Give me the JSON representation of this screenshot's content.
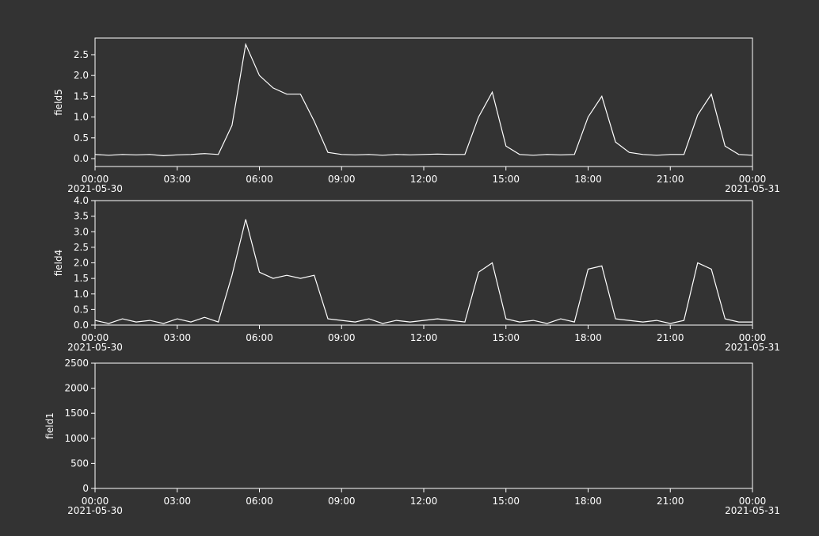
{
  "chart_data": [
    {
      "type": "line",
      "ylabel": "field5",
      "x": [
        "2021-05-30 00:00",
        "2021-05-30 00:30",
        "2021-05-30 01:00",
        "2021-05-30 01:30",
        "2021-05-30 02:00",
        "2021-05-30 02:30",
        "2021-05-30 03:00",
        "2021-05-30 03:30",
        "2021-05-30 04:00",
        "2021-05-30 04:30",
        "2021-05-30 05:00",
        "2021-05-30 05:30",
        "2021-05-30 06:00",
        "2021-05-30 06:30",
        "2021-05-30 07:00",
        "2021-05-30 07:30",
        "2021-05-30 08:00",
        "2021-05-30 08:30",
        "2021-05-30 09:00",
        "2021-05-30 09:30",
        "2021-05-30 10:00",
        "2021-05-30 10:30",
        "2021-05-30 11:00",
        "2021-05-30 11:30",
        "2021-05-30 12:00",
        "2021-05-30 12:30",
        "2021-05-30 13:00",
        "2021-05-30 13:30",
        "2021-05-30 14:00",
        "2021-05-30 14:30",
        "2021-05-30 15:00",
        "2021-05-30 15:30",
        "2021-05-30 16:00",
        "2021-05-30 16:30",
        "2021-05-30 17:00",
        "2021-05-30 17:30",
        "2021-05-30 18:00",
        "2021-05-30 18:30",
        "2021-05-30 19:00",
        "2021-05-30 19:30",
        "2021-05-30 20:00",
        "2021-05-30 20:30",
        "2021-05-30 21:00",
        "2021-05-30 21:30",
        "2021-05-30 22:00",
        "2021-05-30 22:30",
        "2021-05-30 23:00",
        "2021-05-30 23:30",
        "2021-05-31 00:00"
      ],
      "series": [
        {
          "name": "field5",
          "color": "#ffffff",
          "values": [
            0.1,
            0.08,
            0.1,
            0.09,
            0.1,
            0.07,
            0.09,
            0.1,
            0.12,
            0.1,
            0.8,
            2.75,
            2.0,
            1.7,
            1.55,
            1.55,
            0.9,
            0.15,
            0.1,
            0.09,
            0.1,
            0.08,
            0.1,
            0.09,
            0.1,
            0.11,
            0.1,
            0.1,
            1.0,
            1.6,
            0.3,
            0.1,
            0.08,
            0.1,
            0.09,
            0.1,
            1.0,
            1.5,
            0.4,
            0.15,
            0.1,
            0.08,
            0.1,
            0.1,
            1.05,
            1.55,
            0.3,
            0.1,
            0.08
          ]
        }
      ],
      "xlim": [
        "2021-05-30 00:00",
        "2021-05-31 00:00"
      ],
      "xticks": [
        {
          "value": "2021-05-30 00:00",
          "label": "00:00",
          "sublabel": "2021-05-30"
        },
        {
          "value": "2021-05-30 03:00",
          "label": "03:00"
        },
        {
          "value": "2021-05-30 06:00",
          "label": "06:00"
        },
        {
          "value": "2021-05-30 09:00",
          "label": "09:00"
        },
        {
          "value": "2021-05-30 12:00",
          "label": "12:00"
        },
        {
          "value": "2021-05-30 15:00",
          "label": "15:00"
        },
        {
          "value": "2021-05-30 18:00",
          "label": "18:00"
        },
        {
          "value": "2021-05-30 21:00",
          "label": "21:00"
        },
        {
          "value": "2021-05-31 00:00",
          "label": "00:00",
          "sublabel": "2021-05-31"
        }
      ],
      "ylim": [
        -0.19,
        2.9
      ],
      "yticks": [
        {
          "value": 0,
          "label": "0.0"
        },
        {
          "value": 0.5,
          "label": "0.5"
        },
        {
          "value": 1,
          "label": "1.0"
        },
        {
          "value": 1.5,
          "label": "1.5"
        },
        {
          "value": 2,
          "label": "2.0"
        },
        {
          "value": 2.5,
          "label": "2.5"
        }
      ]
    },
    {
      "type": "line",
      "ylabel": "field4",
      "x": [
        "2021-05-30 00:00",
        "2021-05-30 00:30",
        "2021-05-30 01:00",
        "2021-05-30 01:30",
        "2021-05-30 02:00",
        "2021-05-30 02:30",
        "2021-05-30 03:00",
        "2021-05-30 03:30",
        "2021-05-30 04:00",
        "2021-05-30 04:30",
        "2021-05-30 05:00",
        "2021-05-30 05:30",
        "2021-05-30 06:00",
        "2021-05-30 06:30",
        "2021-05-30 07:00",
        "2021-05-30 07:30",
        "2021-05-30 08:00",
        "2021-05-30 08:30",
        "2021-05-30 09:00",
        "2021-05-30 09:30",
        "2021-05-30 10:00",
        "2021-05-30 10:30",
        "2021-05-30 11:00",
        "2021-05-30 11:30",
        "2021-05-30 12:00",
        "2021-05-30 12:30",
        "2021-05-30 13:00",
        "2021-05-30 13:30",
        "2021-05-30 14:00",
        "2021-05-30 14:30",
        "2021-05-30 15:00",
        "2021-05-30 15:30",
        "2021-05-30 16:00",
        "2021-05-30 16:30",
        "2021-05-30 17:00",
        "2021-05-30 17:30",
        "2021-05-30 18:00",
        "2021-05-30 18:30",
        "2021-05-30 19:00",
        "2021-05-30 19:30",
        "2021-05-30 20:00",
        "2021-05-30 20:30",
        "2021-05-30 21:00",
        "2021-05-30 21:30",
        "2021-05-30 22:00",
        "2021-05-30 22:30",
        "2021-05-30 23:00",
        "2021-05-30 23:30",
        "2021-05-31 00:00"
      ],
      "series": [
        {
          "name": "field4",
          "color": "#ffffff",
          "values": [
            0.15,
            0.05,
            0.2,
            0.1,
            0.15,
            0.05,
            0.2,
            0.1,
            0.25,
            0.1,
            1.6,
            3.4,
            1.7,
            1.5,
            1.6,
            1.5,
            1.6,
            0.2,
            0.15,
            0.1,
            0.2,
            0.05,
            0.15,
            0.1,
            0.15,
            0.2,
            0.15,
            0.1,
            1.7,
            2.0,
            0.2,
            0.1,
            0.15,
            0.05,
            0.2,
            0.1,
            1.8,
            1.9,
            0.2,
            0.15,
            0.1,
            0.15,
            0.05,
            0.15,
            2.0,
            1.8,
            0.2,
            0.1,
            0.1
          ]
        }
      ],
      "xlim": [
        "2021-05-30 00:00",
        "2021-05-31 00:00"
      ],
      "xticks": [
        {
          "value": "2021-05-30 00:00",
          "label": "00:00",
          "sublabel": "2021-05-30"
        },
        {
          "value": "2021-05-30 03:00",
          "label": "03:00"
        },
        {
          "value": "2021-05-30 06:00",
          "label": "06:00"
        },
        {
          "value": "2021-05-30 09:00",
          "label": "09:00"
        },
        {
          "value": "2021-05-30 12:00",
          "label": "12:00"
        },
        {
          "value": "2021-05-30 15:00",
          "label": "15:00"
        },
        {
          "value": "2021-05-30 18:00",
          "label": "18:00"
        },
        {
          "value": "2021-05-30 21:00",
          "label": "21:00"
        },
        {
          "value": "2021-05-31 00:00",
          "label": "00:00",
          "sublabel": "2021-05-31"
        }
      ],
      "ylim": [
        0,
        4
      ],
      "yticks": [
        {
          "value": 0,
          "label": "0.0"
        },
        {
          "value": 0.5,
          "label": "0.5"
        },
        {
          "value": 1,
          "label": "1.0"
        },
        {
          "value": 1.5,
          "label": "1.5"
        },
        {
          "value": 2,
          "label": "2.0"
        },
        {
          "value": 2.5,
          "label": "2.5"
        },
        {
          "value": 3,
          "label": "3.0"
        },
        {
          "value": 3.5,
          "label": "3.5"
        },
        {
          "value": 4,
          "label": "4.0"
        }
      ]
    },
    {
      "type": "line",
      "ylabel": "field1",
      "xlim": [
        "2021-05-30 00:00",
        "2021-05-31 00:00"
      ],
      "xticks": [
        {
          "value": "2021-05-30 00:00",
          "label": "00:00",
          "sublabel": "2021-05-30"
        },
        {
          "value": "2021-05-30 03:00",
          "label": "03:00"
        },
        {
          "value": "2021-05-30 06:00",
          "label": "06:00"
        },
        {
          "value": "2021-05-30 09:00",
          "label": "09:00"
        },
        {
          "value": "2021-05-30 12:00",
          "label": "12:00"
        },
        {
          "value": "2021-05-30 15:00",
          "label": "15:00"
        },
        {
          "value": "2021-05-30 18:00",
          "label": "18:00"
        },
        {
          "value": "2021-05-30 21:00",
          "label": "21:00"
        },
        {
          "value": "2021-05-31 00:00",
          "label": "00:00",
          "sublabel": "2021-05-31"
        }
      ],
      "ylim": [
        0,
        2500
      ],
      "yticks": [
        0,
        500,
        1000,
        1500,
        2000,
        2500
      ]
    }
  ]
}
